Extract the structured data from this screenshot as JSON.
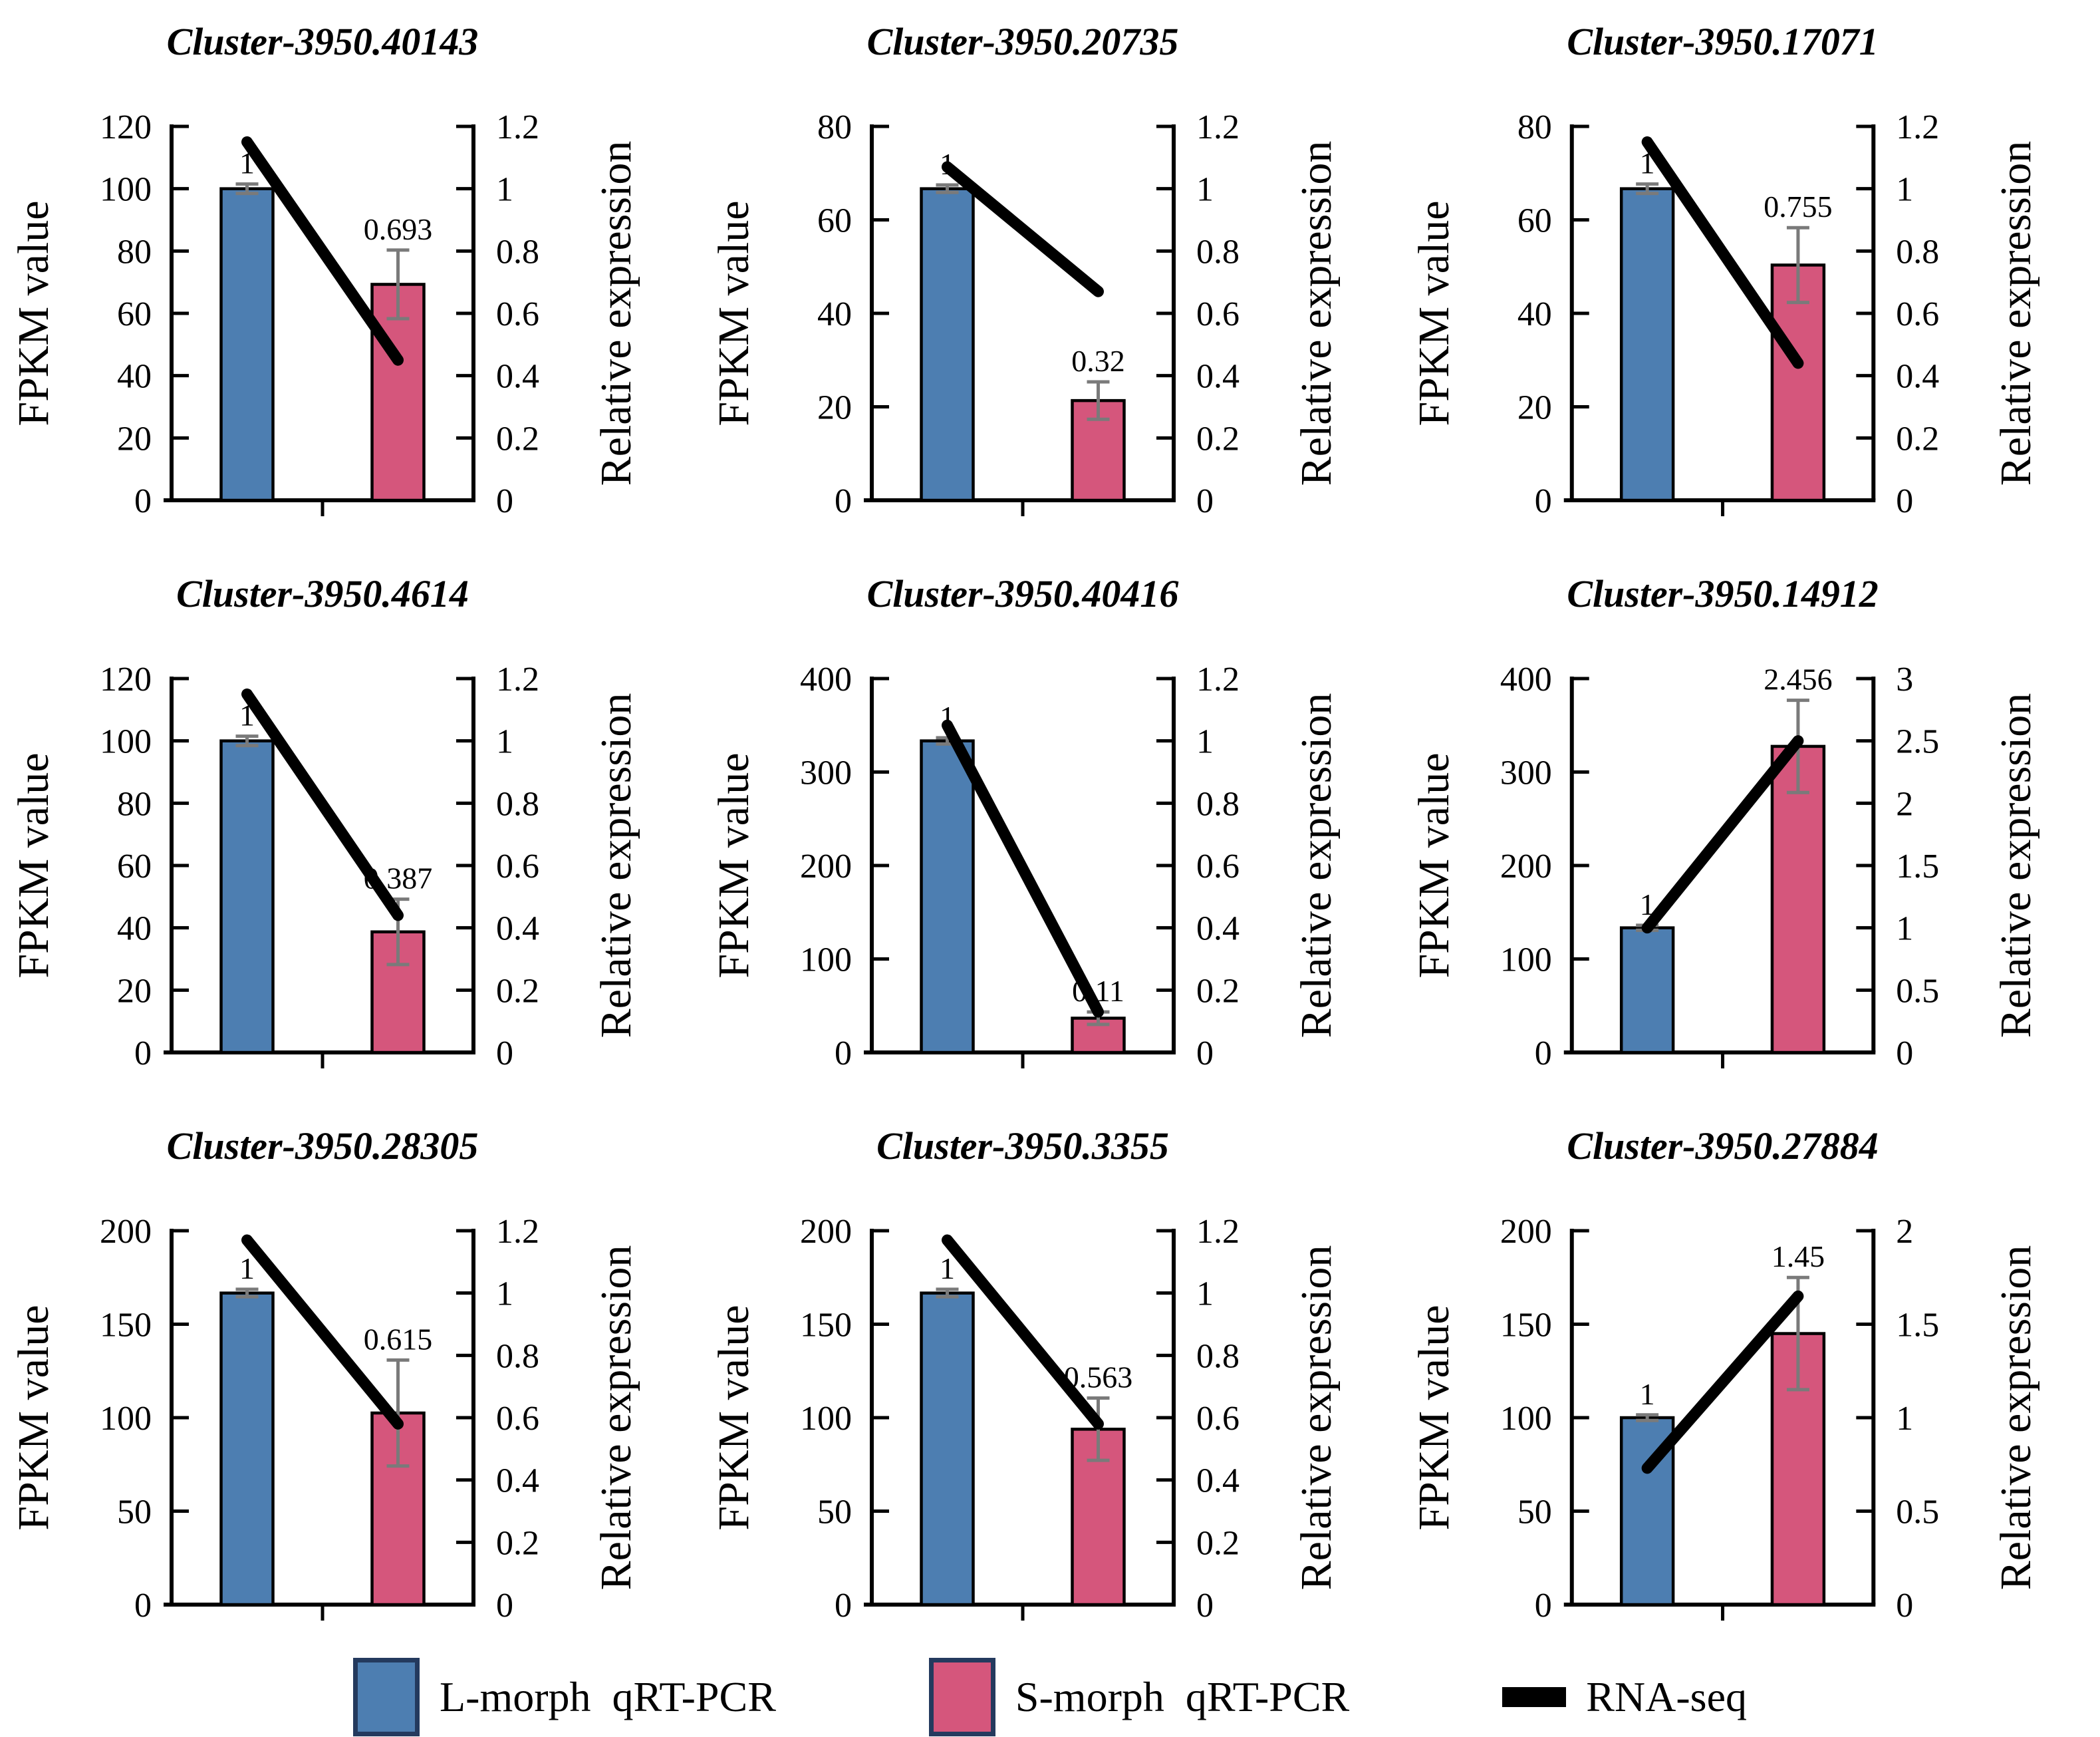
{
  "page": {
    "background": "#ffffff"
  },
  "colors": {
    "l_morph": "#4d7eb1",
    "s_morph": "#d5567c",
    "rna_seq": "#000000",
    "error_bar": "#7a7a7a",
    "axis": "#000000",
    "legend_swatch_border": "#243a5e"
  },
  "legend": {
    "items": [
      {
        "name": "l-morph-qrt-pcr",
        "label": "L-morph  qRT-PCR",
        "swatch": "bar",
        "color_key": "l_morph"
      },
      {
        "name": "s-morph-qrt-pcr",
        "label": "S-morph  qRT-PCR",
        "swatch": "bar",
        "color_key": "s_morph"
      },
      {
        "name": "rna-seq",
        "label": "RNA-seq",
        "swatch": "line",
        "color_key": "rna_seq"
      }
    ]
  },
  "chart_data": [
    {
      "type": "bar",
      "title": "Cluster-3950.40143",
      "categories": [
        "L-morph",
        "S-morph"
      ],
      "left_axis": {
        "label": "FPKM value",
        "max": 120,
        "tick_values": [
          0,
          20,
          40,
          60,
          80,
          100,
          120
        ],
        "tick_labels": [
          "0",
          "20",
          "40",
          "60",
          "80",
          "100",
          "120"
        ]
      },
      "right_axis": {
        "label": "Relative expression",
        "max": 1.2,
        "tick_values": [
          0,
          0.2,
          0.4,
          0.6,
          0.8,
          1,
          1.2
        ],
        "tick_labels": [
          "0",
          "0.2",
          "0.4",
          "0.6",
          "0.8",
          "1",
          "1.2"
        ]
      },
      "bars": {
        "values": [
          1,
          0.693
        ],
        "labels": [
          "1",
          "0.693"
        ],
        "errors": [
          0.015,
          0.11
        ],
        "fpkm_equivalent": [
          100,
          69.3
        ]
      },
      "line": {
        "name": "RNA-seq",
        "values": [
          1.15,
          0.45
        ]
      }
    },
    {
      "type": "bar",
      "title": "Cluster-3950.20735",
      "categories": [
        "L-morph",
        "S-morph"
      ],
      "left_axis": {
        "label": "FPKM value",
        "max": 80,
        "tick_values": [
          0,
          20,
          40,
          60,
          80
        ],
        "tick_labels": [
          "0",
          "20",
          "40",
          "60",
          "80"
        ]
      },
      "right_axis": {
        "label": "Relative expression",
        "max": 1.2,
        "tick_values": [
          0,
          0.2,
          0.4,
          0.6,
          0.8,
          1,
          1.2
        ],
        "tick_labels": [
          "0",
          "0.2",
          "0.4",
          "0.6",
          "0.8",
          "1",
          "1.2"
        ]
      },
      "bars": {
        "values": [
          1,
          0.32
        ],
        "labels": [
          "1",
          "0.32"
        ],
        "errors": [
          0.012,
          0.06
        ],
        "fpkm_equivalent": [
          66.7,
          21.3
        ]
      },
      "line": {
        "name": "RNA-seq",
        "values": [
          1.07,
          0.67
        ]
      }
    },
    {
      "type": "bar",
      "title": "Cluster-3950.17071",
      "categories": [
        "L-morph",
        "S-morph"
      ],
      "left_axis": {
        "label": "FPKM value",
        "max": 80,
        "tick_values": [
          0,
          20,
          40,
          60,
          80
        ],
        "tick_labels": [
          "0",
          "20",
          "40",
          "60",
          "80"
        ]
      },
      "right_axis": {
        "label": "Relative expression",
        "max": 1.2,
        "tick_values": [
          0,
          0.2,
          0.4,
          0.6,
          0.8,
          1,
          1.2
        ],
        "tick_labels": [
          "0",
          "0.2",
          "0.4",
          "0.6",
          "0.8",
          "1",
          "1.2"
        ]
      },
      "bars": {
        "values": [
          1,
          0.755
        ],
        "labels": [
          "1",
          "0.755"
        ],
        "errors": [
          0.015,
          0.12
        ],
        "fpkm_equivalent": [
          66.7,
          50.3
        ]
      },
      "line": {
        "name": "RNA-seq",
        "values": [
          1.15,
          0.44
        ]
      }
    },
    {
      "type": "bar",
      "title": "Cluster-3950.4614",
      "categories": [
        "L-morph",
        "S-morph"
      ],
      "left_axis": {
        "label": "FPKM value",
        "max": 120,
        "tick_values": [
          0,
          20,
          40,
          60,
          80,
          100,
          120
        ],
        "tick_labels": [
          "0",
          "20",
          "40",
          "60",
          "80",
          "100",
          "120"
        ]
      },
      "right_axis": {
        "label": "Relative expression",
        "max": 1.2,
        "tick_values": [
          0,
          0.2,
          0.4,
          0.6,
          0.8,
          1,
          1.2
        ],
        "tick_labels": [
          "0",
          "0.2",
          "0.4",
          "0.6",
          "0.8",
          "1",
          "1.2"
        ]
      },
      "bars": {
        "values": [
          1,
          0.387
        ],
        "labels": [
          "1",
          "0.387"
        ],
        "errors": [
          0.015,
          0.105
        ],
        "fpkm_equivalent": [
          100,
          38.7
        ]
      },
      "line": {
        "name": "RNA-seq",
        "values": [
          1.15,
          0.44
        ]
      }
    },
    {
      "type": "bar",
      "title": "Cluster-3950.40416",
      "categories": [
        "L-morph",
        "S-morph"
      ],
      "left_axis": {
        "label": "FPKM value",
        "max": 400,
        "tick_values": [
          0,
          100,
          200,
          300,
          400
        ],
        "tick_labels": [
          "0",
          "100",
          "200",
          "300",
          "400"
        ]
      },
      "right_axis": {
        "label": "Relative expression",
        "max": 1.2,
        "tick_values": [
          0,
          0.2,
          0.4,
          0.6,
          0.8,
          1,
          1.2
        ],
        "tick_labels": [
          "0",
          "0.2",
          "0.4",
          "0.6",
          "0.8",
          "1",
          "1.2"
        ]
      },
      "bars": {
        "values": [
          1,
          0.11
        ],
        "labels": [
          "1",
          "0.11"
        ],
        "errors": [
          0.01,
          0.02
        ],
        "fpkm_equivalent": [
          333.3,
          36.7
        ]
      },
      "line": {
        "name": "RNA-seq",
        "values": [
          1.05,
          0.13
        ]
      }
    },
    {
      "type": "bar",
      "title": "Cluster-3950.14912",
      "categories": [
        "L-morph",
        "S-morph"
      ],
      "left_axis": {
        "label": "FPKM value",
        "max": 400,
        "tick_values": [
          0,
          100,
          200,
          300,
          400
        ],
        "tick_labels": [
          "0",
          "100",
          "200",
          "300",
          "400"
        ]
      },
      "right_axis": {
        "label": "Relative expression",
        "max": 3,
        "tick_values": [
          0,
          0.5,
          1,
          1.5,
          2,
          2.5,
          3
        ],
        "tick_labels": [
          "0",
          "0.5",
          "1",
          "1.5",
          "2",
          "2.5",
          "3"
        ]
      },
      "bars": {
        "values": [
          1,
          2.456
        ],
        "labels": [
          "1",
          "2.456"
        ],
        "errors": [
          0.02,
          0.37
        ],
        "fpkm_equivalent": [
          133.3,
          327.5
        ]
      },
      "line": {
        "name": "RNA-seq",
        "values": [
          1.0,
          2.5
        ]
      }
    },
    {
      "type": "bar",
      "title": "Cluster-3950.28305",
      "categories": [
        "L-morph",
        "S-morph"
      ],
      "left_axis": {
        "label": "FPKM value",
        "max": 200,
        "tick_values": [
          0,
          50,
          100,
          150,
          200
        ],
        "tick_labels": [
          "0",
          "50",
          "100",
          "150",
          "200"
        ]
      },
      "right_axis": {
        "label": "Relative expression",
        "max": 1.2,
        "tick_values": [
          0,
          0.2,
          0.4,
          0.6,
          0.8,
          1,
          1.2
        ],
        "tick_labels": [
          "0",
          "0.2",
          "0.4",
          "0.6",
          "0.8",
          "1",
          "1.2"
        ]
      },
      "bars": {
        "values": [
          1,
          0.615
        ],
        "labels": [
          "1",
          "0.615"
        ],
        "errors": [
          0.012,
          0.17
        ],
        "fpkm_equivalent": [
          166.7,
          102.5
        ]
      },
      "line": {
        "name": "RNA-seq",
        "values": [
          1.17,
          0.58
        ]
      }
    },
    {
      "type": "bar",
      "title": "Cluster-3950.3355",
      "categories": [
        "L-morph",
        "S-morph"
      ],
      "left_axis": {
        "label": "FPKM value",
        "max": 200,
        "tick_values": [
          0,
          50,
          100,
          150,
          200
        ],
        "tick_labels": [
          "0",
          "50",
          "100",
          "150",
          "200"
        ]
      },
      "right_axis": {
        "label": "Relative expression",
        "max": 1.2,
        "tick_values": [
          0,
          0.2,
          0.4,
          0.6,
          0.8,
          1,
          1.2
        ],
        "tick_labels": [
          "0",
          "0.2",
          "0.4",
          "0.6",
          "0.8",
          "1",
          "1.2"
        ]
      },
      "bars": {
        "values": [
          1,
          0.563
        ],
        "labels": [
          "1",
          "0.563"
        ],
        "errors": [
          0.012,
          0.1
        ],
        "fpkm_equivalent": [
          166.7,
          93.8
        ]
      },
      "line": {
        "name": "RNA-seq",
        "values": [
          1.17,
          0.58
        ]
      }
    },
    {
      "type": "bar",
      "title": "Cluster-3950.27884",
      "categories": [
        "L-morph",
        "S-morph"
      ],
      "left_axis": {
        "label": "FPKM value",
        "max": 200,
        "tick_values": [
          0,
          50,
          100,
          150,
          200
        ],
        "tick_labels": [
          "0",
          "50",
          "100",
          "150",
          "200"
        ]
      },
      "right_axis": {
        "label": "Relative expression",
        "max": 2,
        "tick_values": [
          0,
          0.5,
          1,
          1.5,
          2
        ],
        "tick_labels": [
          "0",
          "0.5",
          "1",
          "1.5",
          "2"
        ]
      },
      "bars": {
        "values": [
          1,
          1.45
        ],
        "labels": [
          "1",
          "1.45"
        ],
        "errors": [
          0.015,
          0.3
        ],
        "fpkm_equivalent": [
          100,
          145
        ]
      },
      "line": {
        "name": "RNA-seq",
        "values": [
          0.73,
          1.65
        ]
      }
    }
  ]
}
